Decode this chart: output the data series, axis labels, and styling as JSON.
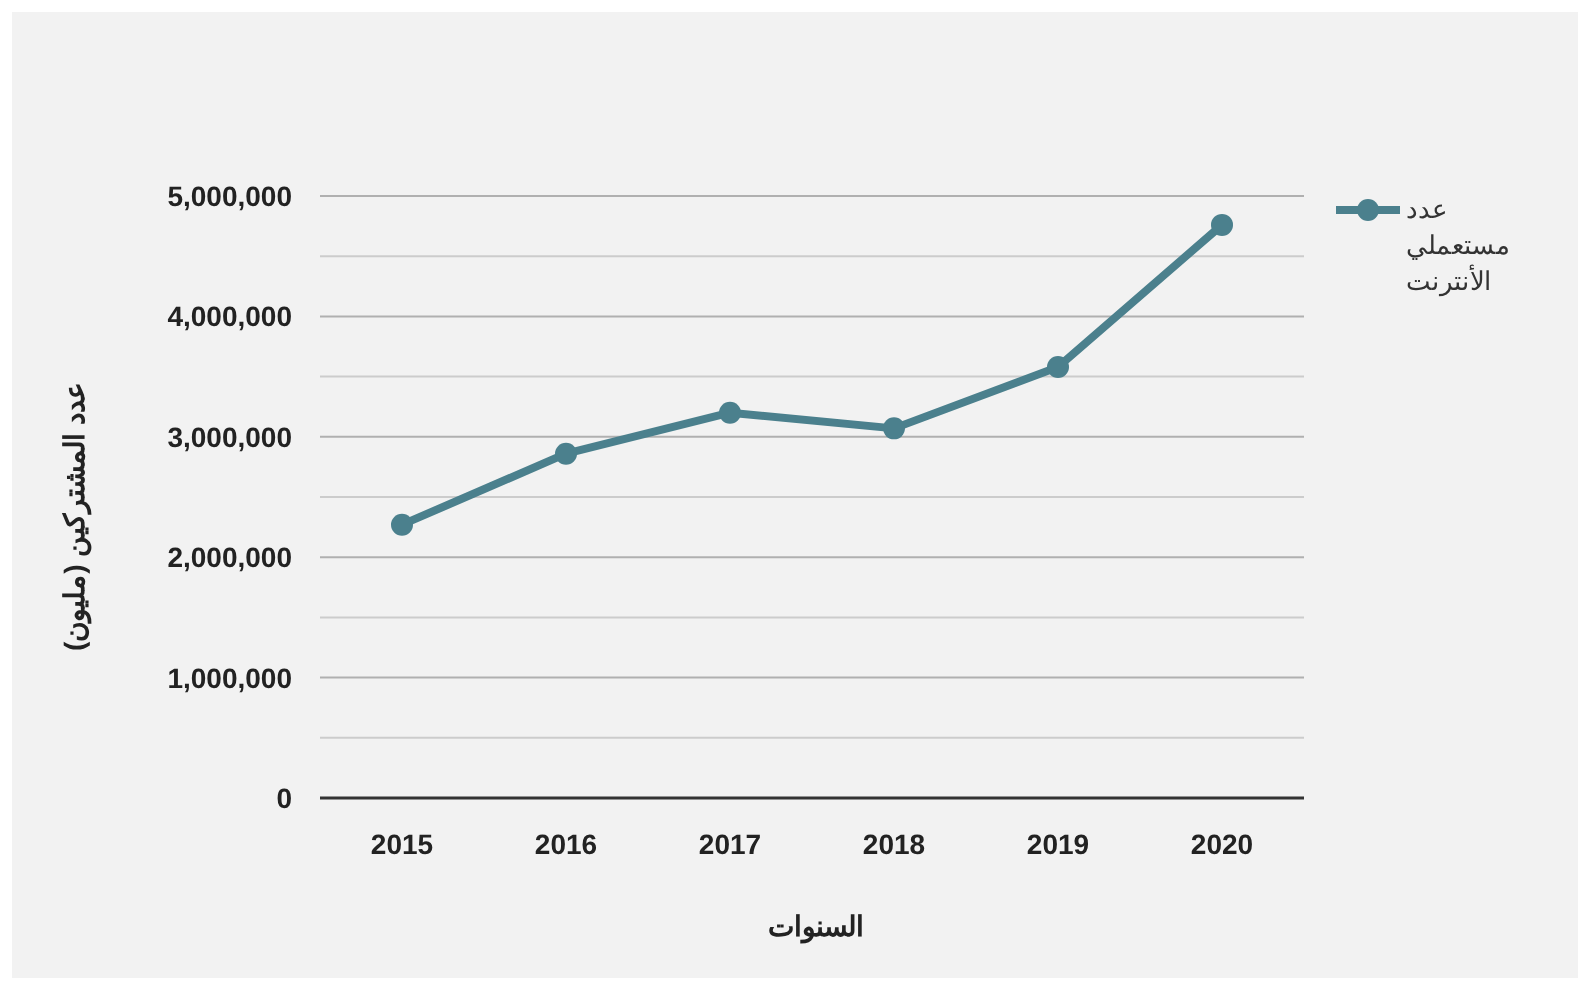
{
  "chart_data": {
    "type": "line",
    "xlabel": "السنوات",
    "ylabel": "عدد المشتركين (مليون)",
    "categories": [
      "2015",
      "2016",
      "2017",
      "2018",
      "2019",
      "2020"
    ],
    "series": [
      {
        "name": "عدد مستعملي الأنترنت",
        "color": "#4b808d",
        "values": [
          2270000,
          2860000,
          3200000,
          3070000,
          3580000,
          4760000
        ]
      }
    ],
    "ylim": [
      0,
      5000000
    ],
    "yticks": [
      {
        "value": 0,
        "label": "0"
      },
      {
        "value": 500000,
        "label": null
      },
      {
        "value": 1000000,
        "label": "1,000,000"
      },
      {
        "value": 1500000,
        "label": null
      },
      {
        "value": 2000000,
        "label": "2,000,000"
      },
      {
        "value": 2500000,
        "label": null
      },
      {
        "value": 3000000,
        "label": "3,000,000"
      },
      {
        "value": 3500000,
        "label": null
      },
      {
        "value": 4000000,
        "label": "4,000,000"
      },
      {
        "value": 4500000,
        "label": null
      },
      {
        "value": 5000000,
        "label": "5,000,000"
      }
    ],
    "grid": "y",
    "legend": "top right",
    "marker": "circle",
    "line_style": "solid"
  }
}
